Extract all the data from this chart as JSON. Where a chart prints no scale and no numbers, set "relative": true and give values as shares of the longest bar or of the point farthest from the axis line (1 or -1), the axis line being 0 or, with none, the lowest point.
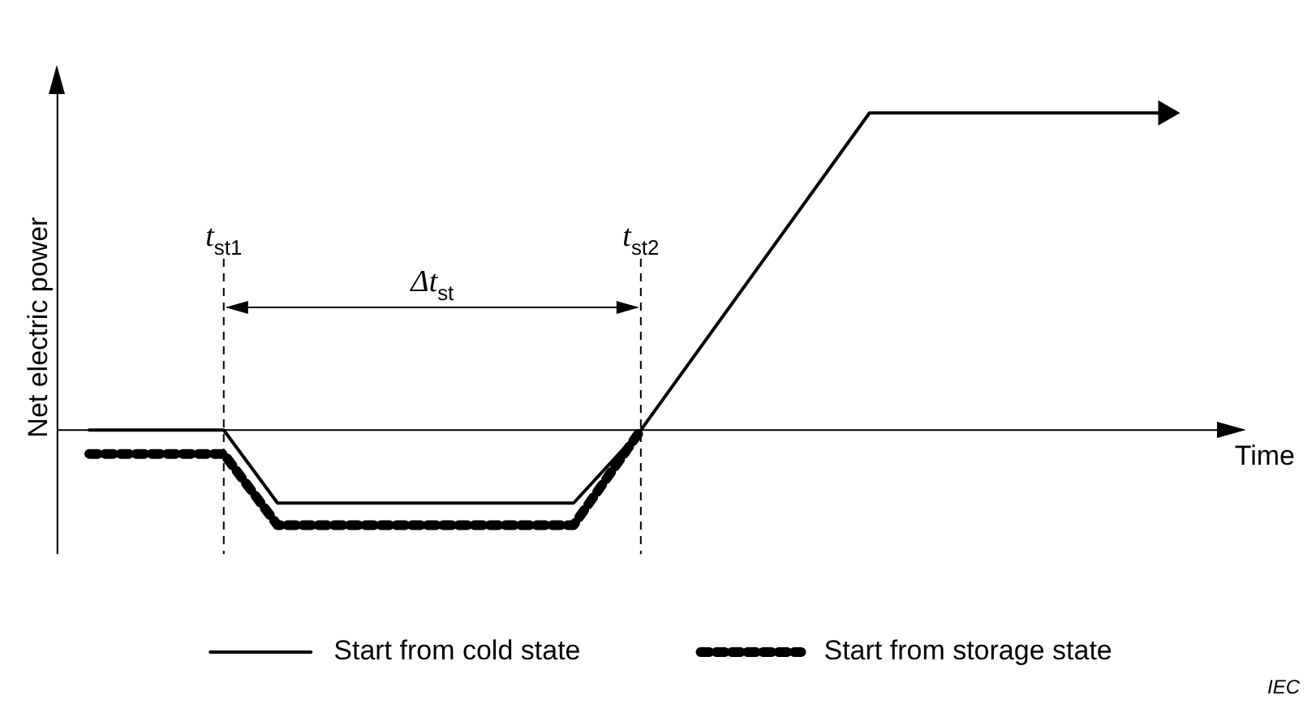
{
  "chart_data": {
    "type": "line",
    "relative": true,
    "xlabel": "Time",
    "ylabel": "Net electric power",
    "grid": false,
    "legend": "bottom",
    "marker": "none",
    "categories": [
      null,
      null,
      null,
      null,
      null,
      null,
      null,
      null,
      null,
      null,
      null,
      null,
      null,
      null,
      null,
      null,
      null,
      null,
      null,
      null,
      null,
      null,
      null,
      null,
      null,
      null,
      null,
      null,
      null,
      null,
      null,
      null,
      null,
      null,
      null,
      null,
      null,
      null,
      null,
      null,
      null,
      null,
      null,
      null,
      null,
      null,
      null,
      null,
      null,
      null,
      null,
      null,
      null,
      null,
      null,
      null,
      null,
      null,
      null,
      null,
      null,
      null,
      null,
      null,
      null,
      null,
      null,
      null,
      null,
      null,
      null,
      null,
      null,
      null,
      null,
      null,
      null,
      null,
      null,
      null,
      null,
      null,
      null,
      null,
      null,
      null,
      null,
      null,
      null
    ],
    "series": [
      {
        "name": "Start from cold state",
        "color": "#000000",
        "line_style": "solid",
        "values": [
          null,
          null,
          0,
          null,
          null,
          null,
          null,
          null,
          null,
          null,
          null,
          null,
          0,
          null,
          null,
          null,
          -0.23,
          null,
          null,
          null,
          null,
          null,
          null,
          null,
          null,
          null,
          null,
          null,
          null,
          null,
          null,
          null,
          null,
          null,
          null,
          null,
          null,
          null,
          -0.23,
          null,
          null,
          null,
          null,
          0,
          null,
          null,
          null,
          null,
          null,
          null,
          null,
          null,
          null,
          null,
          null,
          null,
          null,
          null,
          null,
          null,
          1,
          null,
          null,
          null,
          null,
          null,
          null,
          null,
          null,
          null,
          null,
          null,
          null,
          null,
          null,
          null,
          null,
          null,
          null,
          null,
          null,
          null,
          1,
          null,
          null,
          null,
          null,
          null,
          null
        ]
      },
      {
        "name": "Start from storage state",
        "color": "#000000",
        "line_style": "dotted",
        "values": [
          null,
          null,
          -0.075,
          null,
          null,
          null,
          null,
          null,
          null,
          null,
          null,
          null,
          -0.075,
          null,
          null,
          null,
          -0.3,
          null,
          null,
          null,
          null,
          null,
          null,
          null,
          null,
          null,
          null,
          null,
          null,
          null,
          null,
          null,
          null,
          null,
          null,
          null,
          null,
          null,
          -0.3,
          null,
          null,
          null,
          null,
          0,
          null,
          null,
          null,
          null,
          null,
          null,
          null,
          null,
          null,
          null,
          null,
          null,
          null,
          null,
          null,
          null,
          null,
          null,
          null,
          null,
          null,
          null,
          null,
          null,
          null,
          null,
          null,
          null,
          null,
          null,
          null,
          null,
          null,
          null,
          null,
          null,
          null,
          null,
          null,
          null,
          null,
          null,
          null,
          null,
          null
        ]
      }
    ],
    "annotations": [
      "t$_{st1}$",
      "t$_{st2}$",
      "Δt$_{st}$",
      "IEC"
    ]
  }
}
